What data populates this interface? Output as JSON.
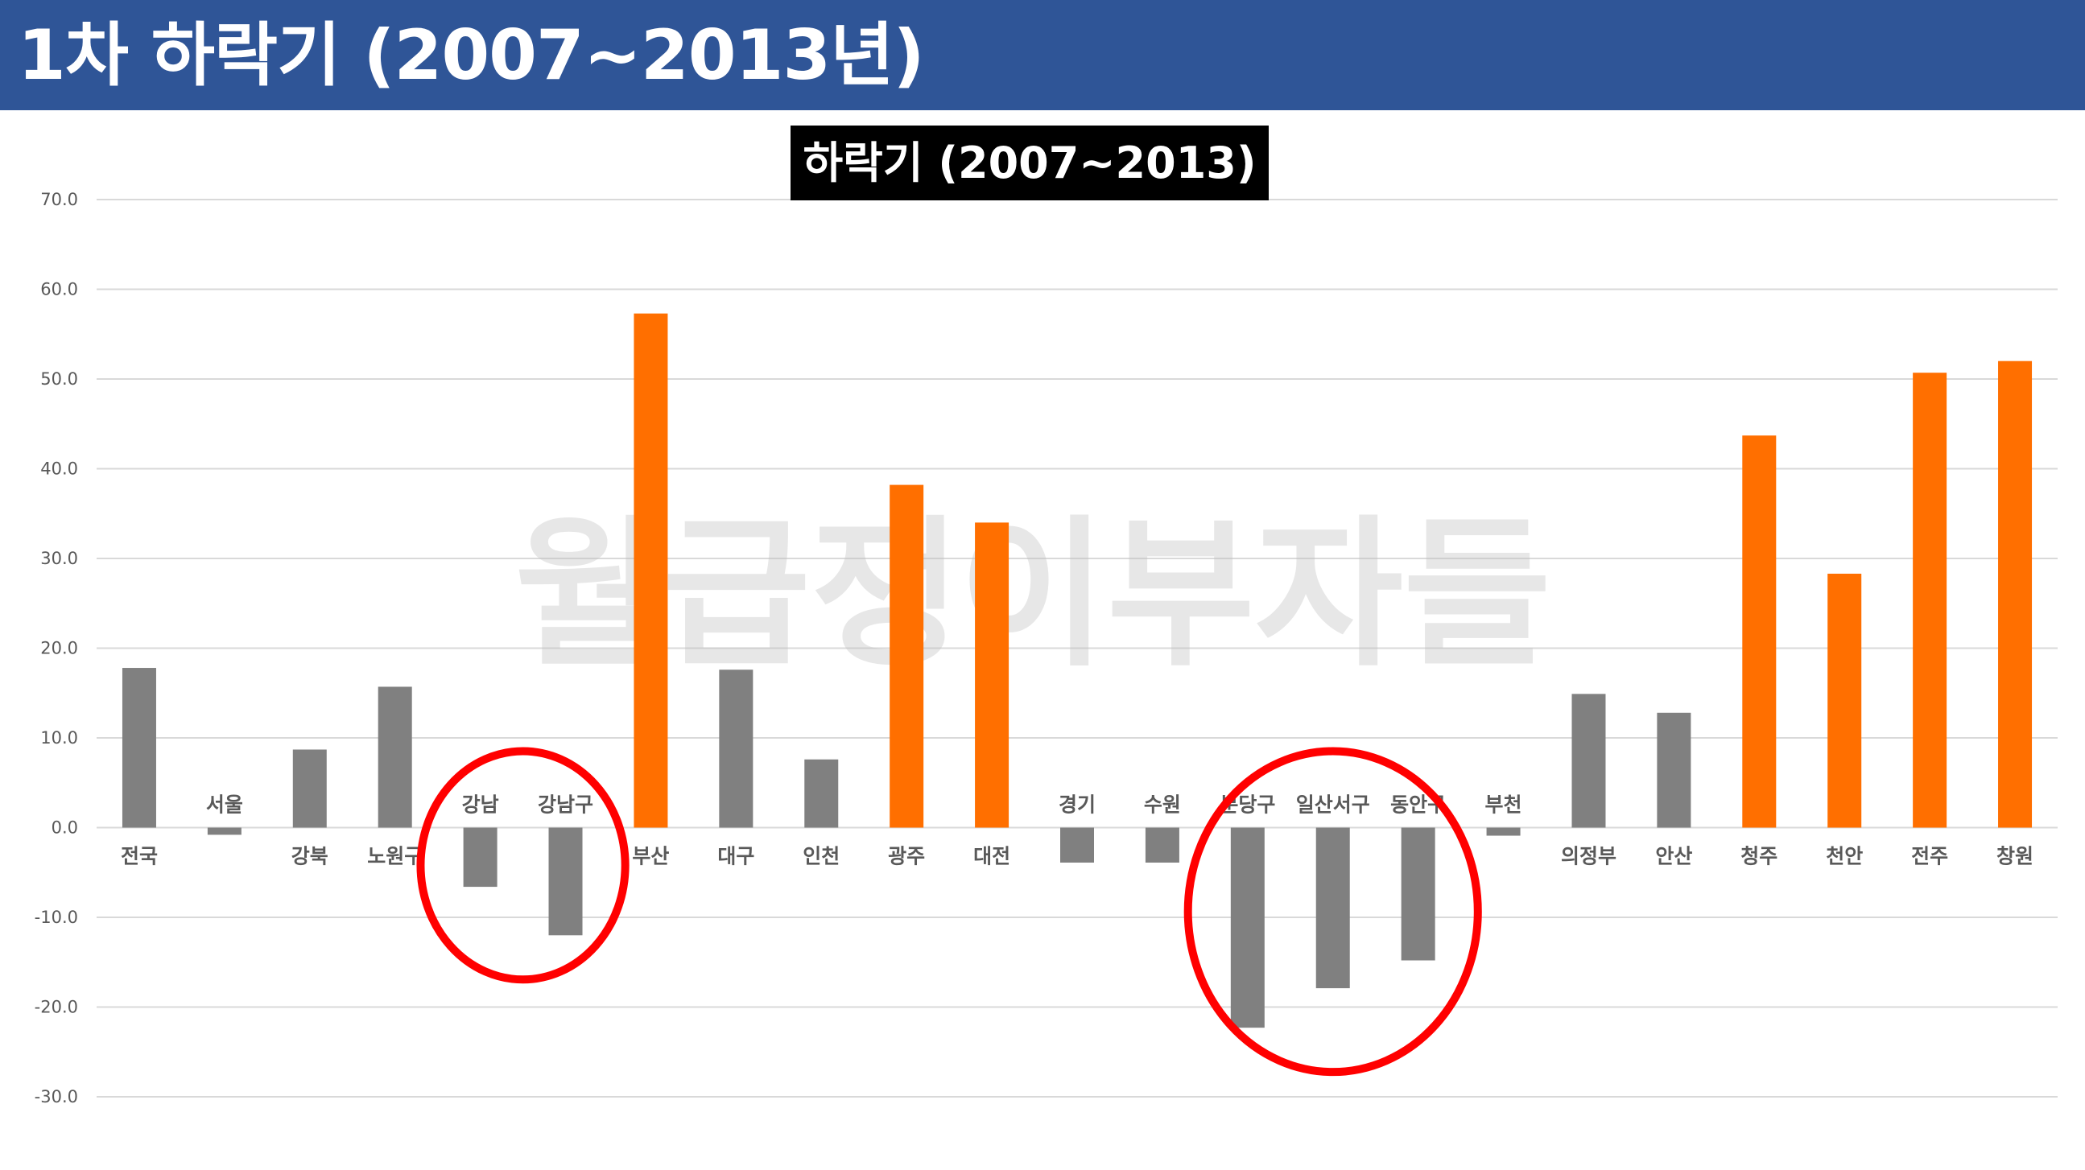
{
  "header": {
    "title": "1차 하락기 (2007~2013년)"
  },
  "watermark": "월급쟁이부자들",
  "colors": {
    "header_bg": "#2f5597",
    "gray_bar": "#808080",
    "orange_bar": "#ff6f00",
    "circle": "#ff0000"
  },
  "chart_data": {
    "type": "bar",
    "title": "하락기 (2007~2013)",
    "xlabel": "",
    "ylabel": "",
    "ylim": [
      -30,
      70
    ],
    "yticks": [
      "70.0",
      "60.0",
      "50.0",
      "40.0",
      "30.0",
      "20.0",
      "10.0",
      "0.0",
      "-10.0",
      "-20.0",
      "-30.0"
    ],
    "grid": true,
    "categories": [
      "전국",
      "서울",
      "강북",
      "노원구",
      "강남",
      "강남구",
      "부산",
      "대구",
      "인천",
      "광주",
      "대전",
      "경기",
      "수원",
      "분당구",
      "일산서구",
      "동안구",
      "부천",
      "의정부",
      "안산",
      "청주",
      "천안",
      "전주",
      "창원"
    ],
    "values": [
      17.8,
      -0.8,
      8.7,
      15.7,
      -6.6,
      -12.0,
      57.3,
      17.6,
      7.6,
      38.2,
      34.0,
      -3.9,
      -3.9,
      -22.3,
      -17.9,
      -14.8,
      -0.9,
      14.9,
      12.8,
      43.7,
      28.3,
      50.7,
      52.0
    ],
    "bar_colors": [
      "gray",
      "gray",
      "gray",
      "gray",
      "gray",
      "gray",
      "orange",
      "gray",
      "gray",
      "orange",
      "orange",
      "gray",
      "gray",
      "gray",
      "gray",
      "gray",
      "gray",
      "gray",
      "gray",
      "orange",
      "orange",
      "orange",
      "orange"
    ],
    "highlighted_groups": [
      [
        "강남",
        "강남구"
      ],
      [
        "분당구",
        "일산서구",
        "동안구"
      ]
    ]
  }
}
